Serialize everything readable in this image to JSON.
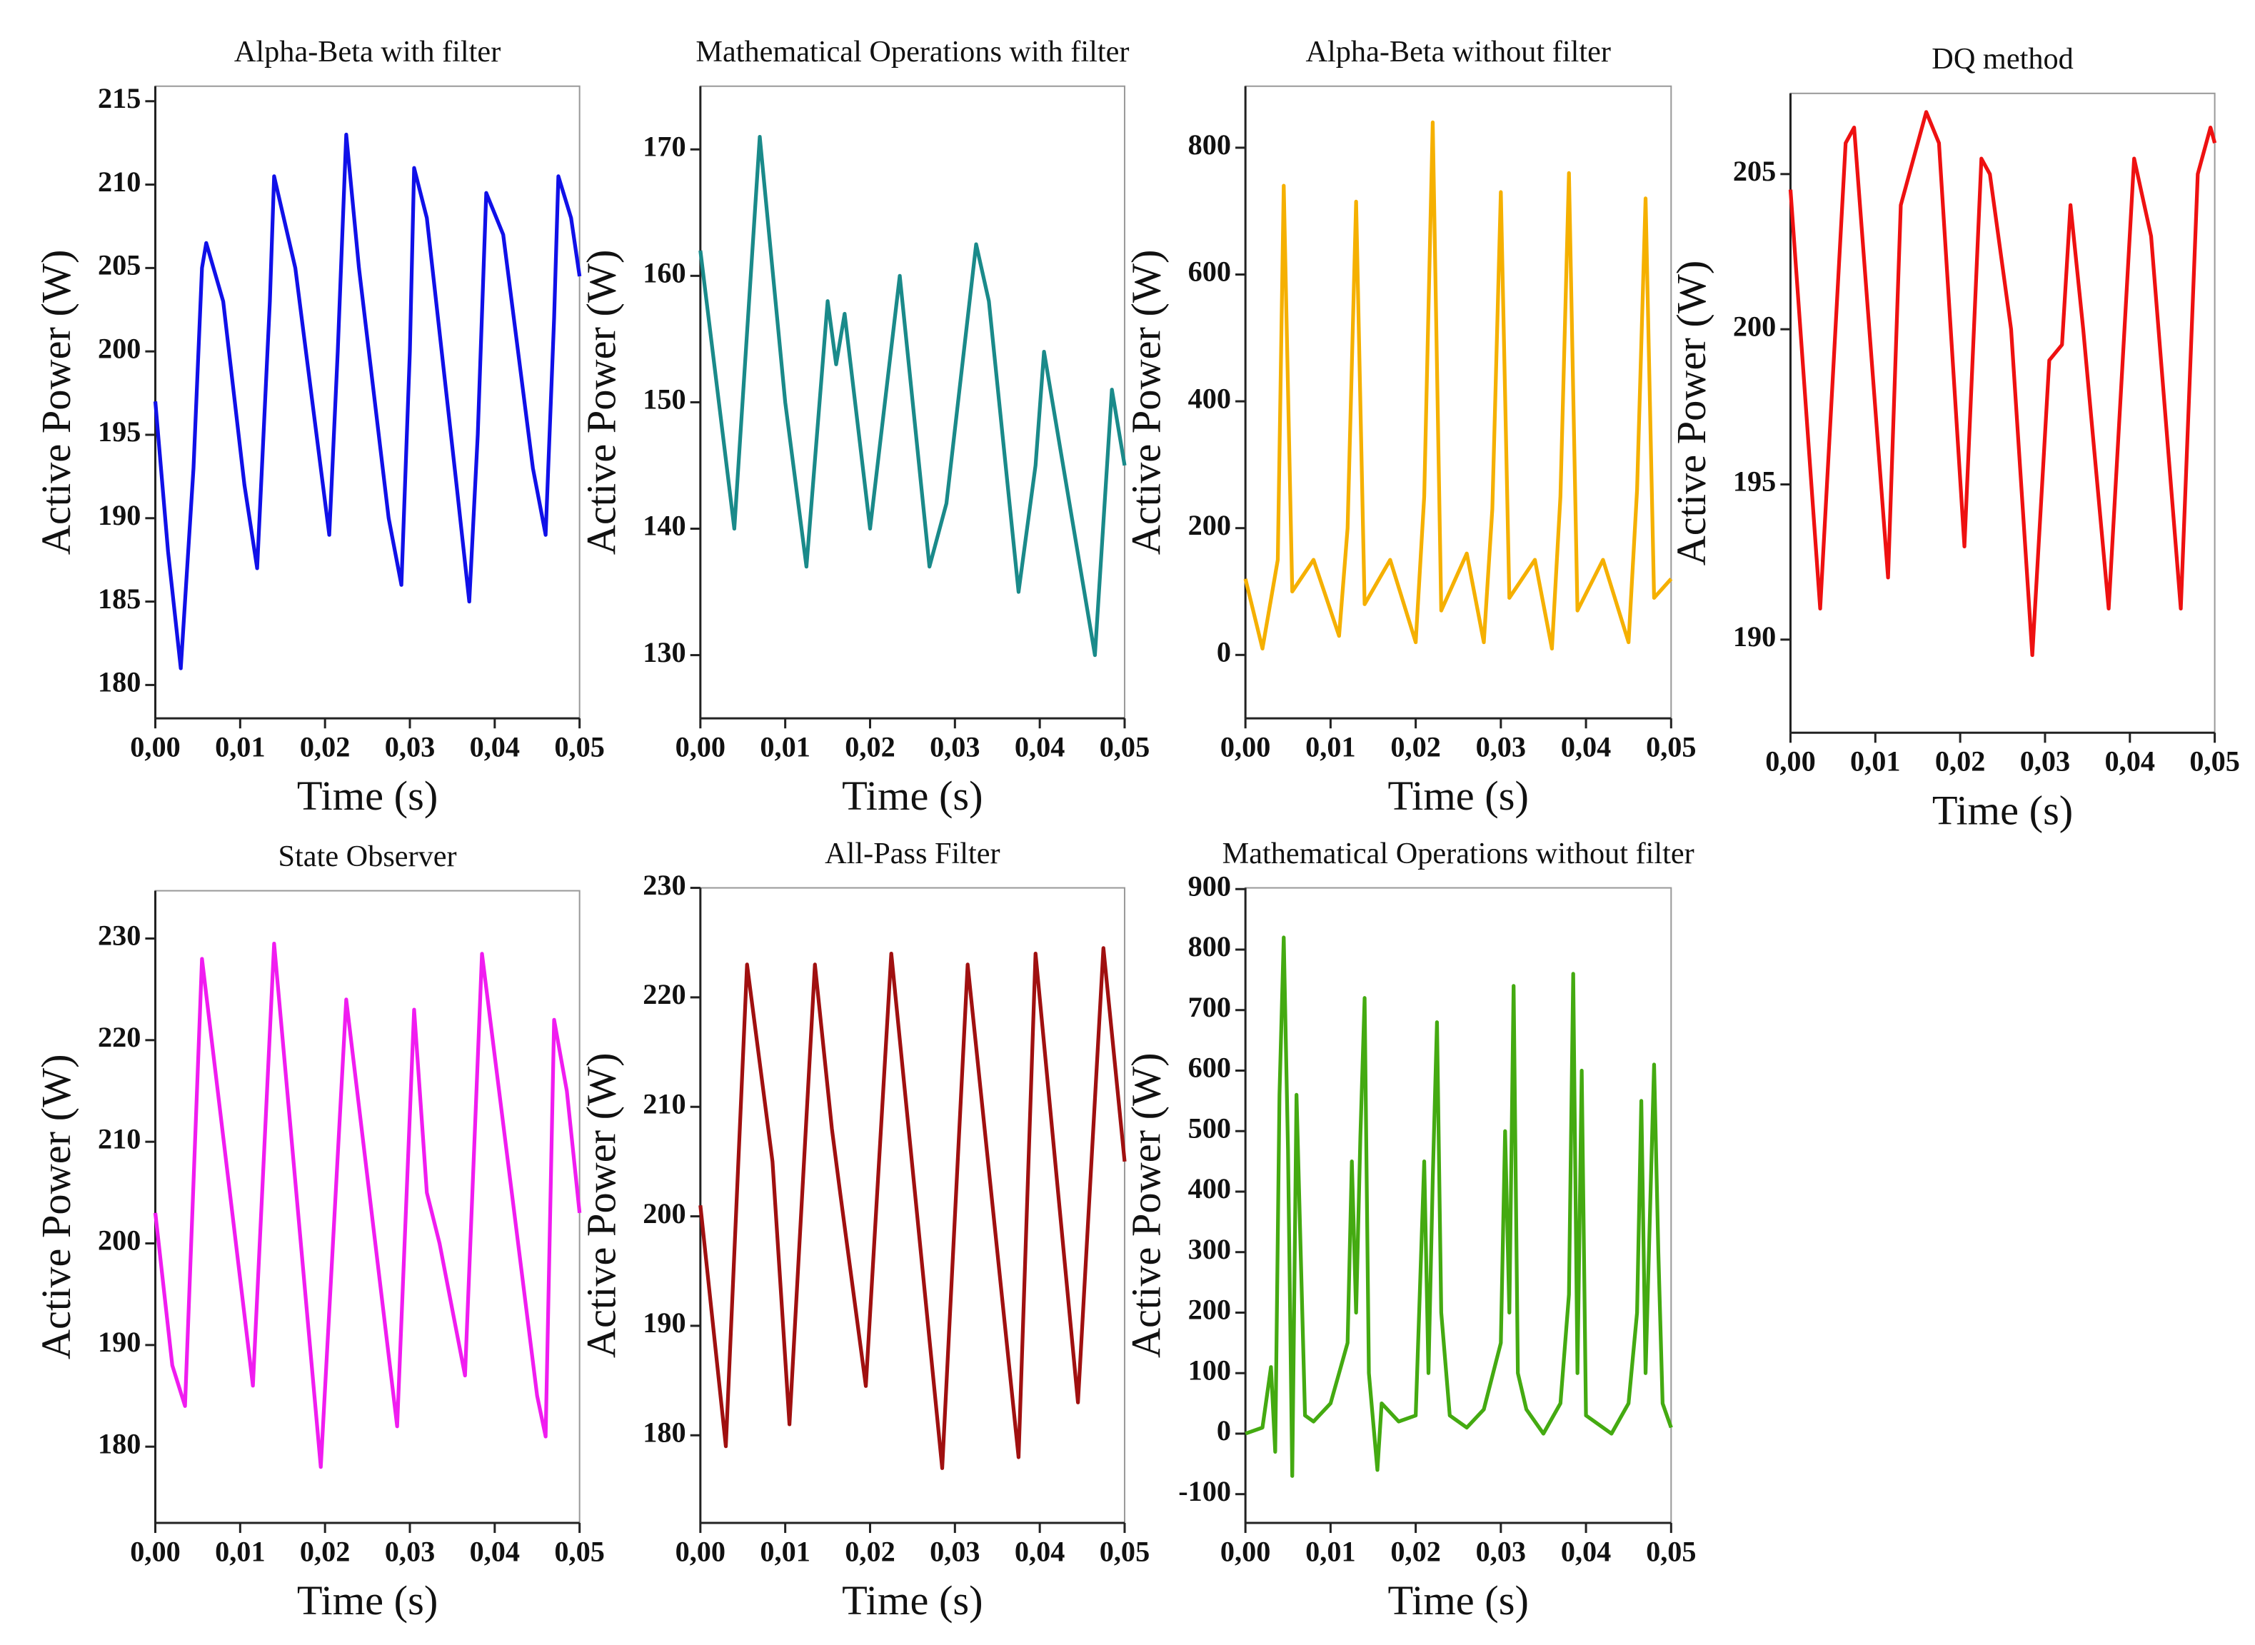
{
  "chart_data": [
    {
      "type": "line",
      "title": "Alpha-Beta with filter",
      "x_label": "Time (s)",
      "y_label": "Active Power (W)",
      "color": "#1010e8",
      "xlim": [
        0,
        0.05
      ],
      "ylim": [
        178,
        215.9
      ],
      "xticks": [
        {
          "value": 0,
          "label": "0,00"
        },
        {
          "value": 0.01,
          "label": "0,01"
        },
        {
          "value": 0.02,
          "label": "0,02"
        },
        {
          "value": 0.03,
          "label": "0,03"
        },
        {
          "value": 0.04,
          "label": "0,04"
        },
        {
          "value": 0.05,
          "label": "0,05"
        }
      ],
      "yticks": [
        180,
        185,
        190,
        195,
        200,
        205,
        210,
        215
      ],
      "x": [
        0,
        0.0015,
        0.003,
        0.0045,
        0.0055,
        0.006,
        0.008,
        0.0105,
        0.012,
        0.0135,
        0.014,
        0.0165,
        0.019,
        0.0205,
        0.0215,
        0.0225,
        0.024,
        0.0275,
        0.029,
        0.03,
        0.0305,
        0.032,
        0.0355,
        0.037,
        0.038,
        0.039,
        0.041,
        0.0445,
        0.046,
        0.047,
        0.0475,
        0.049,
        0.05
      ],
      "values": [
        197,
        188,
        181,
        193,
        205,
        206.5,
        203,
        192,
        187,
        203,
        210.5,
        205,
        195,
        189,
        200,
        213,
        205,
        190,
        186,
        200,
        211,
        208,
        192,
        185,
        195,
        209.5,
        207,
        193,
        189,
        202,
        210.5,
        208,
        204.5
      ]
    },
    {
      "type": "line",
      "title": "Mathematical Operations with filter",
      "x_label": "Time (s)",
      "y_label": "Active Power (W)",
      "color": "#1a8a8a",
      "xlim": [
        0,
        0.05
      ],
      "ylim": [
        125,
        175
      ],
      "xticks": [
        {
          "value": 0,
          "label": "0,00"
        },
        {
          "value": 0.01,
          "label": "0,01"
        },
        {
          "value": 0.02,
          "label": "0,02"
        },
        {
          "value": 0.03,
          "label": "0,03"
        },
        {
          "value": 0.04,
          "label": "0,04"
        },
        {
          "value": 0.05,
          "label": "0,05"
        }
      ],
      "yticks": [
        130,
        140,
        150,
        160,
        170
      ],
      "x": [
        0,
        0.004,
        0.007,
        0.01,
        0.0125,
        0.015,
        0.016,
        0.017,
        0.02,
        0.0235,
        0.027,
        0.029,
        0.0325,
        0.034,
        0.0375,
        0.0395,
        0.0405,
        0.0465,
        0.0485,
        0.05
      ],
      "values": [
        162,
        140,
        171,
        150,
        137,
        158,
        153,
        157,
        140,
        160,
        137,
        142,
        162.5,
        158,
        135,
        145,
        154,
        130,
        151,
        145
      ]
    },
    {
      "type": "line",
      "title": "Alpha-Beta without filter",
      "x_label": "Time (s)",
      "y_label": "Active Power (W)",
      "color": "#f5b000",
      "xlim": [
        0,
        0.05
      ],
      "ylim": [
        -100,
        897
      ],
      "xticks": [
        {
          "value": 0,
          "label": "0,00"
        },
        {
          "value": 0.01,
          "label": "0,01"
        },
        {
          "value": 0.02,
          "label": "0,02"
        },
        {
          "value": 0.03,
          "label": "0,03"
        },
        {
          "value": 0.04,
          "label": "0,04"
        },
        {
          "value": 0.05,
          "label": "0,05"
        }
      ],
      "yticks": [
        0,
        200,
        400,
        600,
        800
      ],
      "x": [
        0,
        0.002,
        0.0038,
        0.0045,
        0.0055,
        0.008,
        0.011,
        0.012,
        0.013,
        0.014,
        0.017,
        0.02,
        0.021,
        0.022,
        0.023,
        0.026,
        0.028,
        0.029,
        0.03,
        0.031,
        0.034,
        0.036,
        0.037,
        0.038,
        0.039,
        0.042,
        0.045,
        0.046,
        0.047,
        0.048,
        0.05
      ],
      "values": [
        120,
        10,
        150,
        740,
        100,
        150,
        30,
        200,
        715,
        80,
        150,
        20,
        250,
        840,
        70,
        160,
        20,
        230,
        730,
        90,
        150,
        10,
        250,
        760,
        70,
        150,
        20,
        260,
        720,
        90,
        120
      ]
    },
    {
      "type": "line",
      "title": "DQ method",
      "x_label": "Time (s)",
      "y_label": "Active Power (W)",
      "color": "#ee1111",
      "xlim": [
        0,
        0.05
      ],
      "ylim": [
        187,
        207.6
      ],
      "xticks": [
        {
          "value": 0,
          "label": "0,00"
        },
        {
          "value": 0.01,
          "label": "0,01"
        },
        {
          "value": 0.02,
          "label": "0,02"
        },
        {
          "value": 0.03,
          "label": "0,03"
        },
        {
          "value": 0.04,
          "label": "0,04"
        },
        {
          "value": 0.05,
          "label": "0,05"
        }
      ],
      "yticks": [
        190,
        195,
        200,
        205
      ],
      "x": [
        0,
        0.0035,
        0.0065,
        0.0075,
        0.0115,
        0.013,
        0.016,
        0.0175,
        0.0205,
        0.0225,
        0.0235,
        0.026,
        0.0285,
        0.0305,
        0.032,
        0.033,
        0.0345,
        0.0375,
        0.0405,
        0.0425,
        0.046,
        0.048,
        0.0495,
        0.05
      ],
      "values": [
        204.5,
        191,
        206,
        206.5,
        192,
        204,
        207,
        206,
        193,
        205.5,
        205,
        200,
        189.5,
        199,
        199.5,
        204,
        200,
        191,
        205.5,
        203,
        191,
        205,
        206.5,
        206
      ]
    },
    {
      "type": "line",
      "title": "State Observer",
      "x_label": "Time (s)",
      "y_label": "Active Power (W)",
      "color": "#f01cf0",
      "xlim": [
        0,
        0.05
      ],
      "ylim": [
        172.5,
        234.7
      ],
      "xticks": [
        {
          "value": 0,
          "label": "0,00"
        },
        {
          "value": 0.01,
          "label": "0,01"
        },
        {
          "value": 0.02,
          "label": "0,02"
        },
        {
          "value": 0.03,
          "label": "0,03"
        },
        {
          "value": 0.04,
          "label": "0,04"
        },
        {
          "value": 0.05,
          "label": "0,05"
        }
      ],
      "yticks": [
        180,
        190,
        200,
        210,
        220,
        230
      ],
      "x": [
        0,
        0.002,
        0.0035,
        0.0055,
        0.0115,
        0.014,
        0.0195,
        0.0225,
        0.0285,
        0.0305,
        0.032,
        0.0335,
        0.0365,
        0.0385,
        0.045,
        0.046,
        0.047,
        0.0485,
        0.05
      ],
      "values": [
        203,
        188,
        184,
        228,
        186,
        229.5,
        178,
        224,
        182,
        223,
        205,
        200,
        187,
        228.5,
        185,
        181,
        222,
        215,
        203
      ]
    },
    {
      "type": "line",
      "title": "All-Pass Filter",
      "x_label": "Time (s)",
      "y_label": "Active Power (W)",
      "color": "#a01010",
      "xlim": [
        0,
        0.05
      ],
      "ylim": [
        172,
        230
      ],
      "xticks": [
        {
          "value": 0,
          "label": "0,00"
        },
        {
          "value": 0.01,
          "label": "0,01"
        },
        {
          "value": 0.02,
          "label": "0,02"
        },
        {
          "value": 0.03,
          "label": "0,03"
        },
        {
          "value": 0.04,
          "label": "0,04"
        },
        {
          "value": 0.05,
          "label": "0,05"
        }
      ],
      "yticks": [
        180,
        190,
        200,
        210,
        220,
        230
      ],
      "x": [
        0,
        0.003,
        0.0055,
        0.0085,
        0.0105,
        0.0135,
        0.0155,
        0.0165,
        0.0195,
        0.0225,
        0.0285,
        0.0315,
        0.0375,
        0.0395,
        0.0445,
        0.0475,
        0.05
      ],
      "values": [
        201,
        179,
        223,
        205,
        181,
        223,
        208,
        202,
        184.5,
        224,
        177,
        223,
        178,
        224,
        183,
        224.5,
        205
      ]
    },
    {
      "type": "line",
      "title": "Mathematical Operations without filter",
      "x_label": "Time (s)",
      "y_label": "Active Power (W)",
      "color": "#44aa11",
      "xlim": [
        0,
        0.05
      ],
      "ylim": [
        -147.5,
        902
      ],
      "xticks": [
        {
          "value": 0,
          "label": "0,00"
        },
        {
          "value": 0.01,
          "label": "0,01"
        },
        {
          "value": 0.02,
          "label": "0,02"
        },
        {
          "value": 0.03,
          "label": "0,03"
        },
        {
          "value": 0.04,
          "label": "0,04"
        },
        {
          "value": 0.05,
          "label": "0,05"
        }
      ],
      "yticks": [
        -100,
        0,
        100,
        200,
        300,
        400,
        500,
        600,
        700,
        800,
        900
      ],
      "x": [
        0,
        0.002,
        0.003,
        0.0035,
        0.004,
        0.0045,
        0.005,
        0.0055,
        0.006,
        0.007,
        0.008,
        0.01,
        0.012,
        0.0125,
        0.013,
        0.0135,
        0.014,
        0.0145,
        0.0155,
        0.016,
        0.018,
        0.02,
        0.021,
        0.0215,
        0.022,
        0.0225,
        0.023,
        0.024,
        0.026,
        0.028,
        0.03,
        0.0305,
        0.031,
        0.0315,
        0.032,
        0.033,
        0.035,
        0.037,
        0.038,
        0.0385,
        0.039,
        0.0395,
        0.04,
        0.041,
        0.043,
        0.045,
        0.046,
        0.0465,
        0.047,
        0.048,
        0.0485,
        0.049,
        0.05
      ],
      "values": [
        0,
        10,
        110,
        -30,
        560,
        820,
        470,
        -70,
        560,
        30,
        20,
        50,
        150,
        450,
        200,
        490,
        720,
        100,
        -60,
        50,
        20,
        30,
        450,
        100,
        420,
        680,
        200,
        30,
        10,
        40,
        150,
        500,
        200,
        740,
        100,
        40,
        0,
        50,
        230,
        760,
        100,
        600,
        30,
        20,
        0,
        50,
        200,
        550,
        100,
        610,
        300,
        50,
        10
      ]
    }
  ]
}
